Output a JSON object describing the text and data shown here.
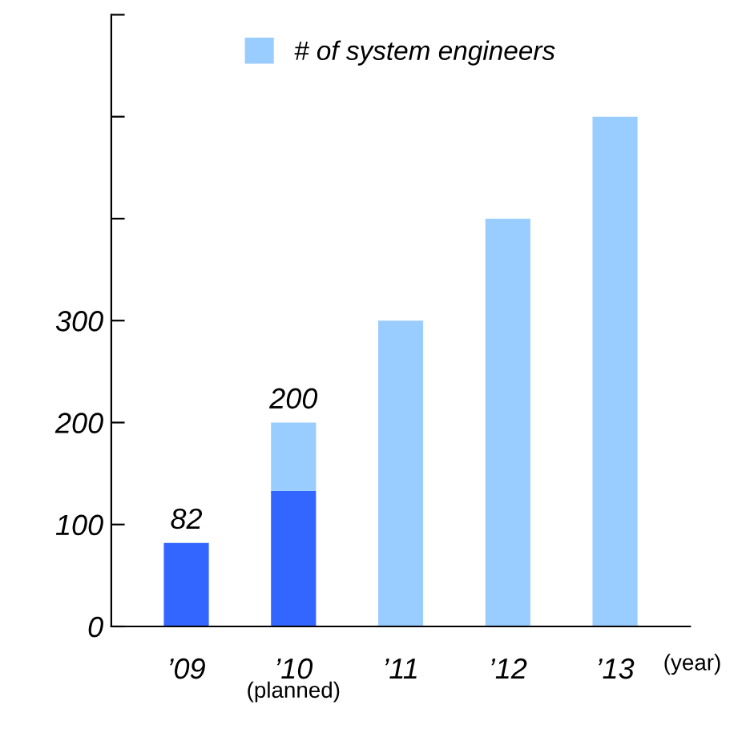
{
  "chart_data": {
    "type": "bar",
    "stacked": true,
    "categories": [
      "’09",
      "’10",
      "’11",
      "’12",
      "’13"
    ],
    "series": [
      {
        "color": "#3366ff",
        "values": [
          82,
          133,
          null,
          null,
          null
        ],
        "value_labels": [
          "82",
          null,
          null,
          null,
          null
        ]
      },
      {
        "name": "# of system engineers",
        "color": "#99ccff",
        "values": [
          null,
          67,
          300,
          400,
          500
        ]
      }
    ],
    "totals": [
      null,
      "200",
      null,
      null,
      null
    ],
    "ylim": [
      0,
      600
    ],
    "yticks": [
      0,
      100,
      200,
      300,
      {
        "value": 400,
        "label": null
      },
      {
        "value": 500,
        "label": null
      },
      {
        "value": 600,
        "label": null
      }
    ],
    "legend": "top",
    "grid": false,
    "annotations": [
      "(planned)",
      "(year)"
    ]
  }
}
